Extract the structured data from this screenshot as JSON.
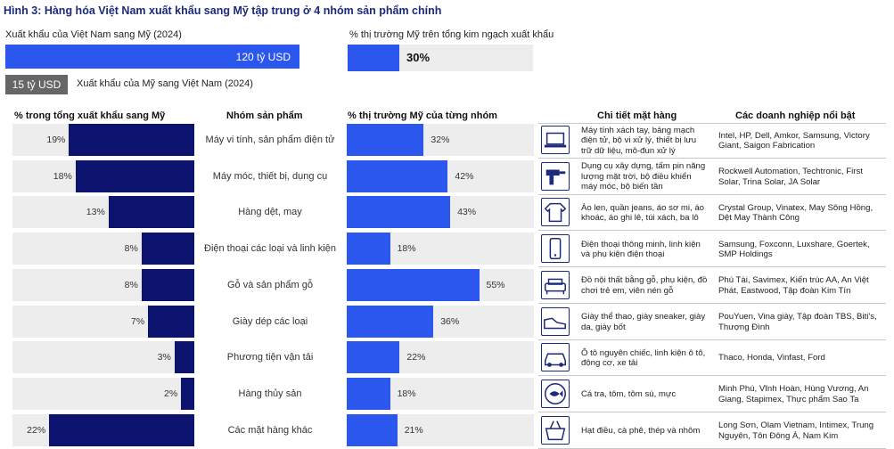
{
  "title": "Hình 3: Hàng hóa Việt Nam xuất khẩu sang Mỹ tập trung ở 4 nhóm sản phẩm chính",
  "export_label": "Xuất khẩu của Việt Nam sang Mỹ (2024)",
  "export_value": "120 tỷ USD",
  "import_value": "15 tỷ USD",
  "import_label": "Xuất khẩu của Mỹ sang Việt Nam (2024)",
  "share_label": "% thị trường Mỹ trên tổng kim ngạch xuất khẩu",
  "share_value": "30%",
  "headers": {
    "left": "% trong tổng xuất khẩu sang Mỹ",
    "category": "Nhóm sản phẩm",
    "right": "% thị trường Mỹ của từng nhóm",
    "detail": "Chi tiết mặt hàng",
    "companies": "Các doanh nghiệp nổi bật"
  },
  "chart_data": {
    "type": "bar",
    "categories": [
      "Máy vi tính, sản phẩm điện tử",
      "Máy móc, thiết bị, dụng cụ",
      "Hàng dệt, may",
      "Điện thoại các loại và linh kiện",
      "Gỗ và sản phẩm gỗ",
      "Giày dép các loại",
      "Phương tiện vận tải",
      "Hàng thủy sản",
      "Các mặt hàng khác"
    ],
    "series": [
      {
        "name": "% trong tổng xuất khẩu sang Mỹ",
        "values": [
          19,
          18,
          13,
          8,
          8,
          7,
          3,
          2,
          22
        ],
        "labels": [
          "19%",
          "18%",
          "13%",
          "8%",
          "8%",
          "7%",
          "3%",
          "2%",
          "22%"
        ]
      },
      {
        "name": "% thị trường Mỹ của từng nhóm",
        "values": [
          32,
          42,
          43,
          18,
          55,
          36,
          22,
          18,
          21
        ],
        "labels": [
          "32%",
          "42%",
          "43%",
          "18%",
          "55%",
          "36%",
          "22%",
          "18%",
          "21%"
        ]
      }
    ]
  },
  "rows": [
    {
      "icon": "laptop-icon",
      "detail": "Máy tính xách tay, bảng mạch điện tử, bộ vi xử lý, thiết bị lưu trữ dữ liệu, mô-đun xử lý",
      "companies": "Intel, HP, Dell, Amkor, Samsung, Victory Giant, Saigon Fabrication"
    },
    {
      "icon": "drill-icon",
      "detail": "Dụng cụ xây dựng, tấm pin năng lượng mặt trời, bộ điều khiển máy móc, bộ biến tần",
      "companies": "Rockwell Automation, Techtronic, First Solar, Trina Solar, JA Solar"
    },
    {
      "icon": "sweater-icon",
      "detail": "Áo len, quần jeans, áo sơ mi, áo khoác, áo ghi lê, túi xách, ba lô",
      "companies": "Crystal Group, Vinatex, May Sông Hồng, Dệt May Thành Công"
    },
    {
      "icon": "phone-icon",
      "detail": "Điện thoại thông minh, linh kiện và phụ kiện điện thoại",
      "companies": "Samsung, Foxconn, Luxshare, Goertek, SMP Holdings"
    },
    {
      "icon": "sofa-icon",
      "detail": "Đồ nội thất bằng gỗ, phụ kiện, đồ chơi trẻ em, viên nén gỗ",
      "companies": "Phú Tài, Savimex, Kiến trúc AA, An Việt Phát, Eastwood, Tập đoàn Kim Tín"
    },
    {
      "icon": "sneaker-icon",
      "detail": "Giày thể thao, giày sneaker, giày da, giày bốt",
      "companies": "PouYuen, Vina giày, Tập đoàn TBS, Biti's, Thượng Đình"
    },
    {
      "icon": "car-icon",
      "detail": "Ô tô nguyên chiếc, linh kiện ô tô, động cơ, xe tải",
      "companies": "Thaco, Honda, Vinfast, Ford"
    },
    {
      "icon": "fish-icon",
      "detail": "Cá tra, tôm, tôm sú, mực",
      "companies": "Minh Phú, Vĩnh Hoàn, Hùng Vương, An Giang, Stapimex, Thực phẩm Sao Ta"
    },
    {
      "icon": "basket-icon",
      "detail": "Hạt điều, cà phê, thép và nhôm",
      "companies": "Long Sơn, Olam Vietnam, Intimex, Trung Nguyên, Tôn Đông Á, Nam Kim"
    }
  ],
  "colors": {
    "dark": "#0c1470",
    "blue": "#2b57ef",
    "gray": "#ededed"
  }
}
